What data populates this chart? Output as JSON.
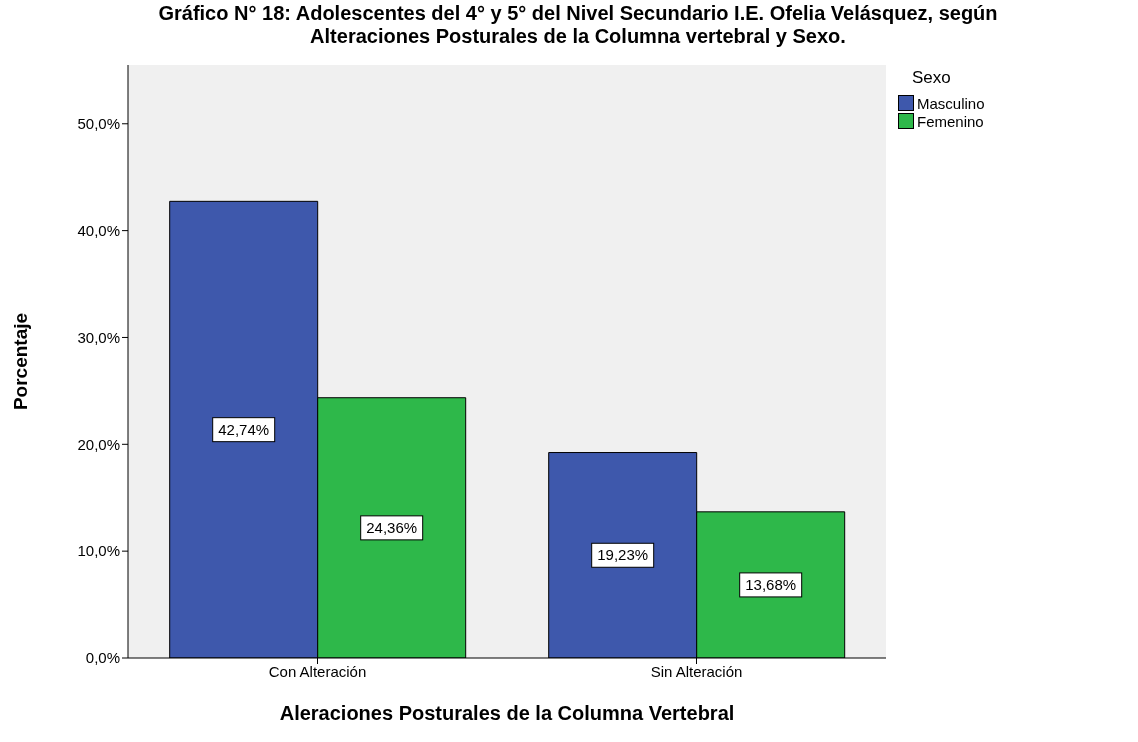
{
  "chart_data": {
    "type": "bar",
    "title": "Gráfico N° 18: Adolescentes del 4° y 5° del Nivel Secundario I.E. Ofelia Velásquez, según Alteraciones Posturales de la Columna vertebral y Sexo.",
    "xlabel": "Aleraciones Posturales de la Columna Vertebral",
    "ylabel": "Porcentaje",
    "legend_title": "Sexo",
    "legend": "top right",
    "categories": [
      "Con Alteración",
      "Sin Alteración"
    ],
    "series": [
      {
        "name": "Masculino",
        "color": "#3e58ac",
        "values": [
          42.74,
          19.23
        ],
        "value_labels": [
          "42,74%",
          "19,23%"
        ]
      },
      {
        "name": "Femenino",
        "color": "#2eb84a",
        "values": [
          24.36,
          13.68
        ],
        "value_labels": [
          "24,36%",
          "13,68%"
        ]
      }
    ],
    "ylim": [
      0,
      55.5
    ],
    "yticks": [
      {
        "value": 0,
        "label": "0,0%"
      },
      {
        "value": 10,
        "label": "10,0%"
      },
      {
        "value": 20,
        "label": "20,0%"
      },
      {
        "value": 30,
        "label": "30,0%"
      },
      {
        "value": 40,
        "label": "40,0%"
      },
      {
        "value": 50,
        "label": "50,0%"
      }
    ]
  }
}
